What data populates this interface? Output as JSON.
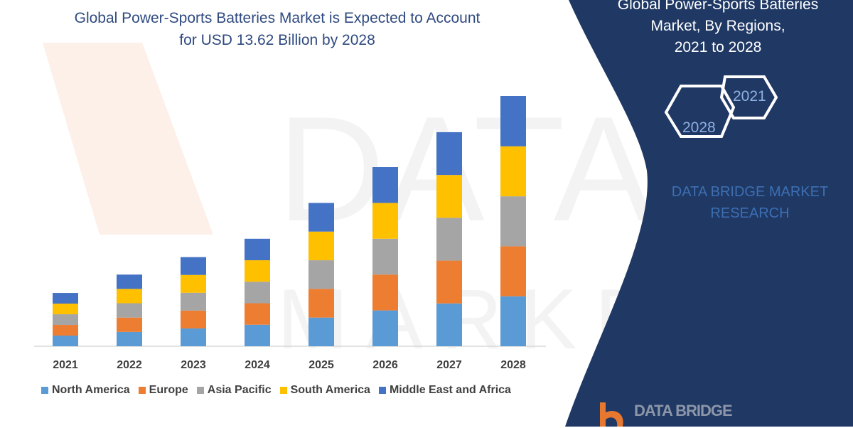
{
  "title": {
    "line1": "Global Power-Sports Batteries Market is Expected to Account",
    "line2": "for USD 13.62 Billion by 2028"
  },
  "side_panel": {
    "title_line1": "Global Power-Sports Batteries",
    "title_line2": "Market, By Regions,",
    "title_line3": "2021 to 2028",
    "hex_year_1": "2021",
    "hex_year_2": "2028",
    "brand_line1": "DATA BRIDGE MARKET",
    "brand_line2": "RESEARCH",
    "logo_text": "DATA BRIDGE",
    "panel_color": "#1f3864"
  },
  "chart_data": {
    "type": "bar",
    "stacked": true,
    "categories": [
      "2021",
      "2022",
      "2023",
      "2024",
      "2025",
      "2026",
      "2027",
      "2028"
    ],
    "series": [
      {
        "name": "North America",
        "color": "#5b9bd5",
        "values": [
          0.58,
          0.78,
          0.97,
          1.17,
          1.56,
          1.95,
          2.33,
          2.72
        ]
      },
      {
        "name": "Europe",
        "color": "#ed7d31",
        "values": [
          0.58,
          0.78,
          0.97,
          1.17,
          1.56,
          1.95,
          2.33,
          2.72
        ]
      },
      {
        "name": "Asia Pacific",
        "color": "#a5a5a5",
        "values": [
          0.58,
          0.78,
          0.97,
          1.17,
          1.56,
          1.95,
          2.33,
          2.72
        ]
      },
      {
        "name": "South America",
        "color": "#ffc000",
        "values": [
          0.58,
          0.78,
          0.97,
          1.17,
          1.56,
          1.95,
          2.33,
          2.72
        ]
      },
      {
        "name": "Middle East and Africa",
        "color": "#4472c4",
        "values": [
          0.58,
          0.78,
          0.97,
          1.17,
          1.56,
          1.95,
          2.33,
          2.74
        ]
      }
    ],
    "ylim": [
      0,
      13.62
    ],
    "grid": false,
    "legend": "bottom",
    "xlabel": "",
    "ylabel": ""
  }
}
